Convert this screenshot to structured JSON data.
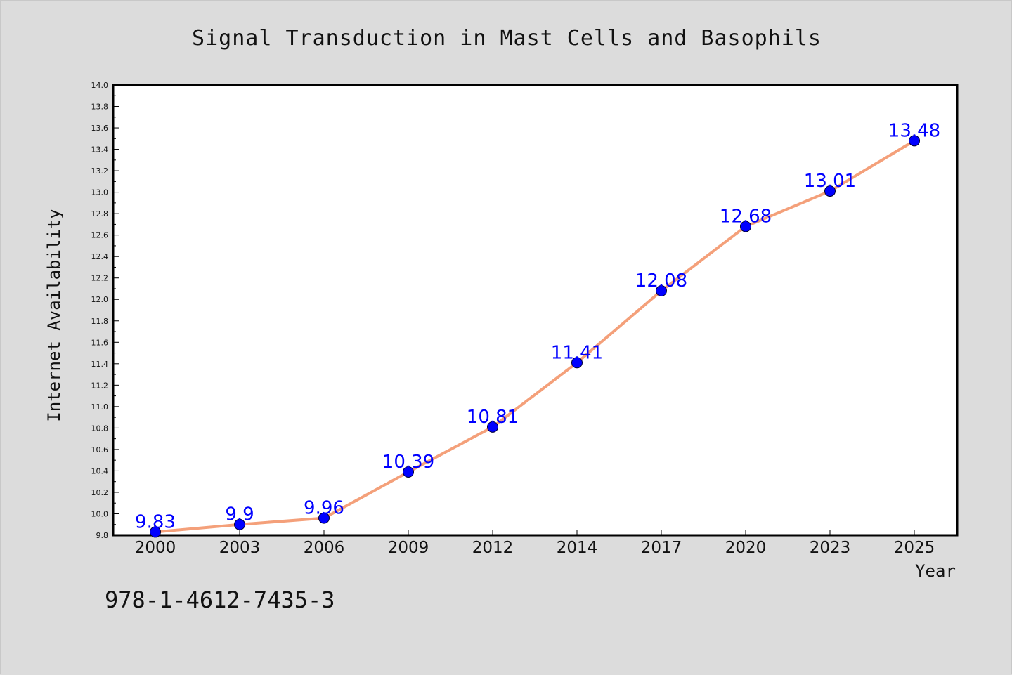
{
  "chart_data": {
    "type": "line",
    "title": "Signal Transduction in Mast Cells and Basophils",
    "xlabel": "Year",
    "ylabel": "Internet Availability",
    "categories": [
      "2000",
      "2003",
      "2006",
      "2009",
      "2012",
      "2014",
      "2017",
      "2020",
      "2023",
      "2025"
    ],
    "series": [
      {
        "values": [
          9.83,
          9.9,
          9.96,
          10.39,
          10.81,
          11.41,
          12.08,
          12.68,
          13.01,
          13.48
        ],
        "labels": [
          "9.83",
          "9.9",
          "9.96",
          "10.39",
          "10.81",
          "11.41",
          "12.08",
          "12.68",
          "13.01",
          "13.48"
        ],
        "line_color": "#f4a07a",
        "marker_color": "#0000ff"
      }
    ],
    "ylim": [
      9.8,
      14.0
    ],
    "yticks": [
      "9.8",
      "10.0",
      "10.2",
      "10.4",
      "10.6",
      "10.8",
      "11.0",
      "11.2",
      "11.4",
      "11.6",
      "11.8",
      "12.0",
      "12.2",
      "12.4",
      "12.6",
      "12.8",
      "13.0",
      "13.2",
      "13.4",
      "13.6",
      "13.8",
      "14.0"
    ],
    "grid": false,
    "legend": "none",
    "label_color": "#0000ff"
  },
  "footnote": "978-1-4612-7435-3"
}
